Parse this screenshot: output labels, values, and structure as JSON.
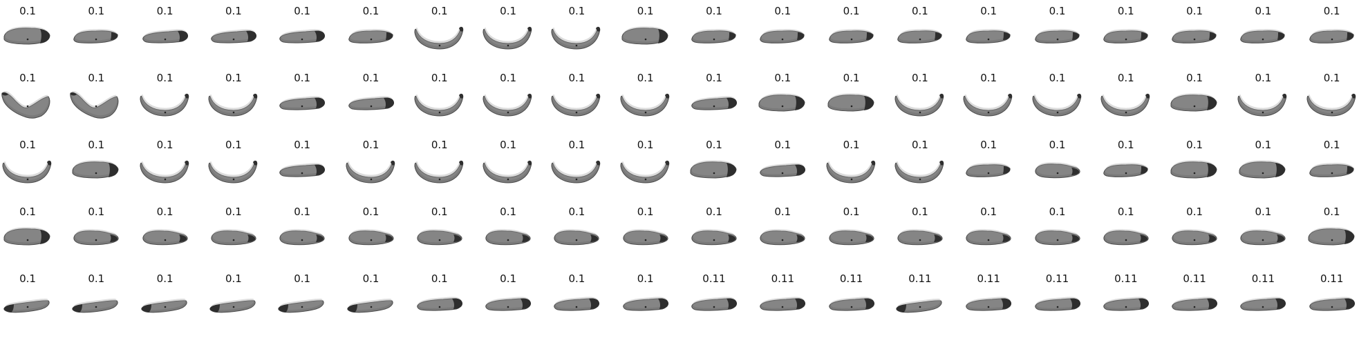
{
  "rows": [
    {
      "cells": [
        {
          "score": "0.1",
          "shape": "fat"
        },
        {
          "score": "0.1",
          "shape": "side"
        },
        {
          "score": "0.1",
          "shape": "tip"
        },
        {
          "score": "0.1",
          "shape": "tip"
        },
        {
          "score": "0.1",
          "shape": "tip"
        },
        {
          "score": "0.1",
          "shape": "side"
        },
        {
          "score": "0.1",
          "shape": "curve"
        },
        {
          "score": "0.1",
          "shape": "curve"
        },
        {
          "score": "0.1",
          "shape": "curve"
        },
        {
          "score": "0.1",
          "shape": "fat"
        },
        {
          "score": "0.1",
          "shape": "side"
        },
        {
          "score": "0.1",
          "shape": "side"
        },
        {
          "score": "0.1",
          "shape": "side"
        },
        {
          "score": "0.1",
          "shape": "side"
        },
        {
          "score": "0.1",
          "shape": "side"
        },
        {
          "score": "0.1",
          "shape": "side"
        },
        {
          "score": "0.1",
          "shape": "side"
        },
        {
          "score": "0.1",
          "shape": "side"
        },
        {
          "score": "0.1",
          "shape": "side"
        },
        {
          "score": "0.1",
          "shape": "side"
        }
      ]
    },
    {
      "cells": [
        {
          "score": "0.1",
          "shape": "vee"
        },
        {
          "score": "0.1",
          "shape": "vee"
        },
        {
          "score": "0.1",
          "shape": "curve"
        },
        {
          "score": "0.1",
          "shape": "curve"
        },
        {
          "score": "0.1",
          "shape": "tip"
        },
        {
          "score": "0.1",
          "shape": "tip"
        },
        {
          "score": "0.1",
          "shape": "curve"
        },
        {
          "score": "0.1",
          "shape": "curve"
        },
        {
          "score": "0.1",
          "shape": "curve"
        },
        {
          "score": "0.1",
          "shape": "curve"
        },
        {
          "score": "0.1",
          "shape": "tip"
        },
        {
          "score": "0.1",
          "shape": "fat"
        },
        {
          "score": "0.1",
          "shape": "fat"
        },
        {
          "score": "0.1",
          "shape": "curve"
        },
        {
          "score": "0.1",
          "shape": "curve"
        },
        {
          "score": "0.1",
          "shape": "curve"
        },
        {
          "score": "0.1",
          "shape": "curve"
        },
        {
          "score": "0.1",
          "shape": "fat"
        },
        {
          "score": "0.1",
          "shape": "curve"
        },
        {
          "score": "0.1",
          "shape": "curve"
        }
      ]
    },
    {
      "cells": [
        {
          "score": "0.1",
          "shape": "curve"
        },
        {
          "score": "0.1",
          "shape": "fat"
        },
        {
          "score": "0.1",
          "shape": "curve"
        },
        {
          "score": "0.1",
          "shape": "curve"
        },
        {
          "score": "0.1",
          "shape": "tip"
        },
        {
          "score": "0.1",
          "shape": "curve"
        },
        {
          "score": "0.1",
          "shape": "curve"
        },
        {
          "score": "0.1",
          "shape": "curve"
        },
        {
          "score": "0.1",
          "shape": "curve"
        },
        {
          "score": "0.1",
          "shape": "curve"
        },
        {
          "score": "0.1",
          "shape": "fat"
        },
        {
          "score": "0.1",
          "shape": "tip"
        },
        {
          "score": "0.1",
          "shape": "curve"
        },
        {
          "score": "0.1",
          "shape": "curve"
        },
        {
          "score": "0.1",
          "shape": "side"
        },
        {
          "score": "0.1",
          "shape": "blob"
        },
        {
          "score": "0.1",
          "shape": "side"
        },
        {
          "score": "0.1",
          "shape": "fat"
        },
        {
          "score": "0.1",
          "shape": "fat"
        },
        {
          "score": "0.1",
          "shape": "side"
        }
      ]
    },
    {
      "cells": [
        {
          "score": "0.1",
          "shape": "fat"
        },
        {
          "score": "0.1",
          "shape": "blob"
        },
        {
          "score": "0.1",
          "shape": "blob"
        },
        {
          "score": "0.1",
          "shape": "blob"
        },
        {
          "score": "0.1",
          "shape": "blob"
        },
        {
          "score": "0.1",
          "shape": "blob"
        },
        {
          "score": "0.1",
          "shape": "blob"
        },
        {
          "score": "0.1",
          "shape": "blob"
        },
        {
          "score": "0.1",
          "shape": "blob"
        },
        {
          "score": "0.1",
          "shape": "blob"
        },
        {
          "score": "0.1",
          "shape": "blob"
        },
        {
          "score": "0.1",
          "shape": "blob"
        },
        {
          "score": "0.1",
          "shape": "blob"
        },
        {
          "score": "0.1",
          "shape": "blob"
        },
        {
          "score": "0.1",
          "shape": "blob"
        },
        {
          "score": "0.1",
          "shape": "blob"
        },
        {
          "score": "0.1",
          "shape": "blob"
        },
        {
          "score": "0.1",
          "shape": "blob"
        },
        {
          "score": "0.1",
          "shape": "blob"
        },
        {
          "score": "0.1",
          "shape": "fat"
        }
      ]
    },
    {
      "cells": [
        {
          "score": "0.1",
          "shape": "end"
        },
        {
          "score": "0.1",
          "shape": "end"
        },
        {
          "score": "0.1",
          "shape": "end"
        },
        {
          "score": "0.1",
          "shape": "end"
        },
        {
          "score": "0.1",
          "shape": "end"
        },
        {
          "score": "0.1",
          "shape": "end"
        },
        {
          "score": "0.1",
          "shape": "tip"
        },
        {
          "score": "0.1",
          "shape": "tip"
        },
        {
          "score": "0.1",
          "shape": "tip"
        },
        {
          "score": "0.1",
          "shape": "tip"
        },
        {
          "score": "0.11",
          "shape": "tip"
        },
        {
          "score": "0.11",
          "shape": "tip"
        },
        {
          "score": "0.11",
          "shape": "tip"
        },
        {
          "score": "0.11",
          "shape": "end"
        },
        {
          "score": "0.11",
          "shape": "tip"
        },
        {
          "score": "0.11",
          "shape": "tip"
        },
        {
          "score": "0.11",
          "shape": "tip"
        },
        {
          "score": "0.11",
          "shape": "tip"
        },
        {
          "score": "0.11",
          "shape": "tip"
        },
        {
          "score": "0.11",
          "shape": "tip"
        }
      ]
    }
  ]
}
